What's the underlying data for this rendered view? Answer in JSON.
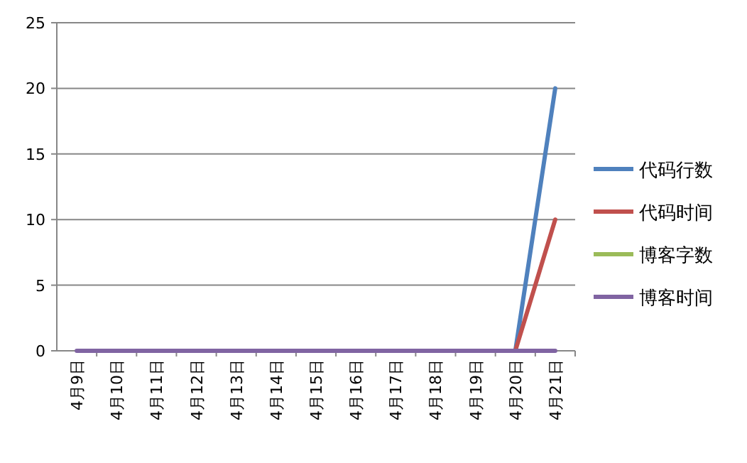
{
  "chart_data": {
    "type": "line",
    "categories": [
      "4月9日",
      "4月10日",
      "4月11日",
      "4月12日",
      "4月13日",
      "4月14日",
      "4月15日",
      "4月16日",
      "4月17日",
      "4月18日",
      "4月19日",
      "4月20日",
      "4月21日"
    ],
    "series": [
      {
        "name": "代码行数",
        "color": "#4f81bd",
        "values": [
          null,
          null,
          null,
          null,
          null,
          null,
          null,
          null,
          null,
          null,
          null,
          0,
          20
        ]
      },
      {
        "name": "代码时间",
        "color": "#c0504d",
        "values": [
          null,
          null,
          null,
          null,
          null,
          null,
          null,
          null,
          null,
          null,
          null,
          0,
          10
        ]
      },
      {
        "name": "博客字数",
        "color": "#9bbb59",
        "values": [
          null,
          null,
          null,
          null,
          null,
          null,
          null,
          null,
          null,
          null,
          null,
          null,
          null
        ]
      },
      {
        "name": "博客时间",
        "color": "#8064a2",
        "values": [
          0,
          0,
          0,
          0,
          0,
          0,
          0,
          0,
          0,
          0,
          0,
          0,
          0
        ]
      }
    ],
    "ylim": [
      0,
      25
    ],
    "yticks": [
      0,
      5,
      10,
      15,
      20,
      25
    ],
    "grid": "y",
    "legend": "right",
    "marker": "none",
    "line_style": "solid"
  }
}
